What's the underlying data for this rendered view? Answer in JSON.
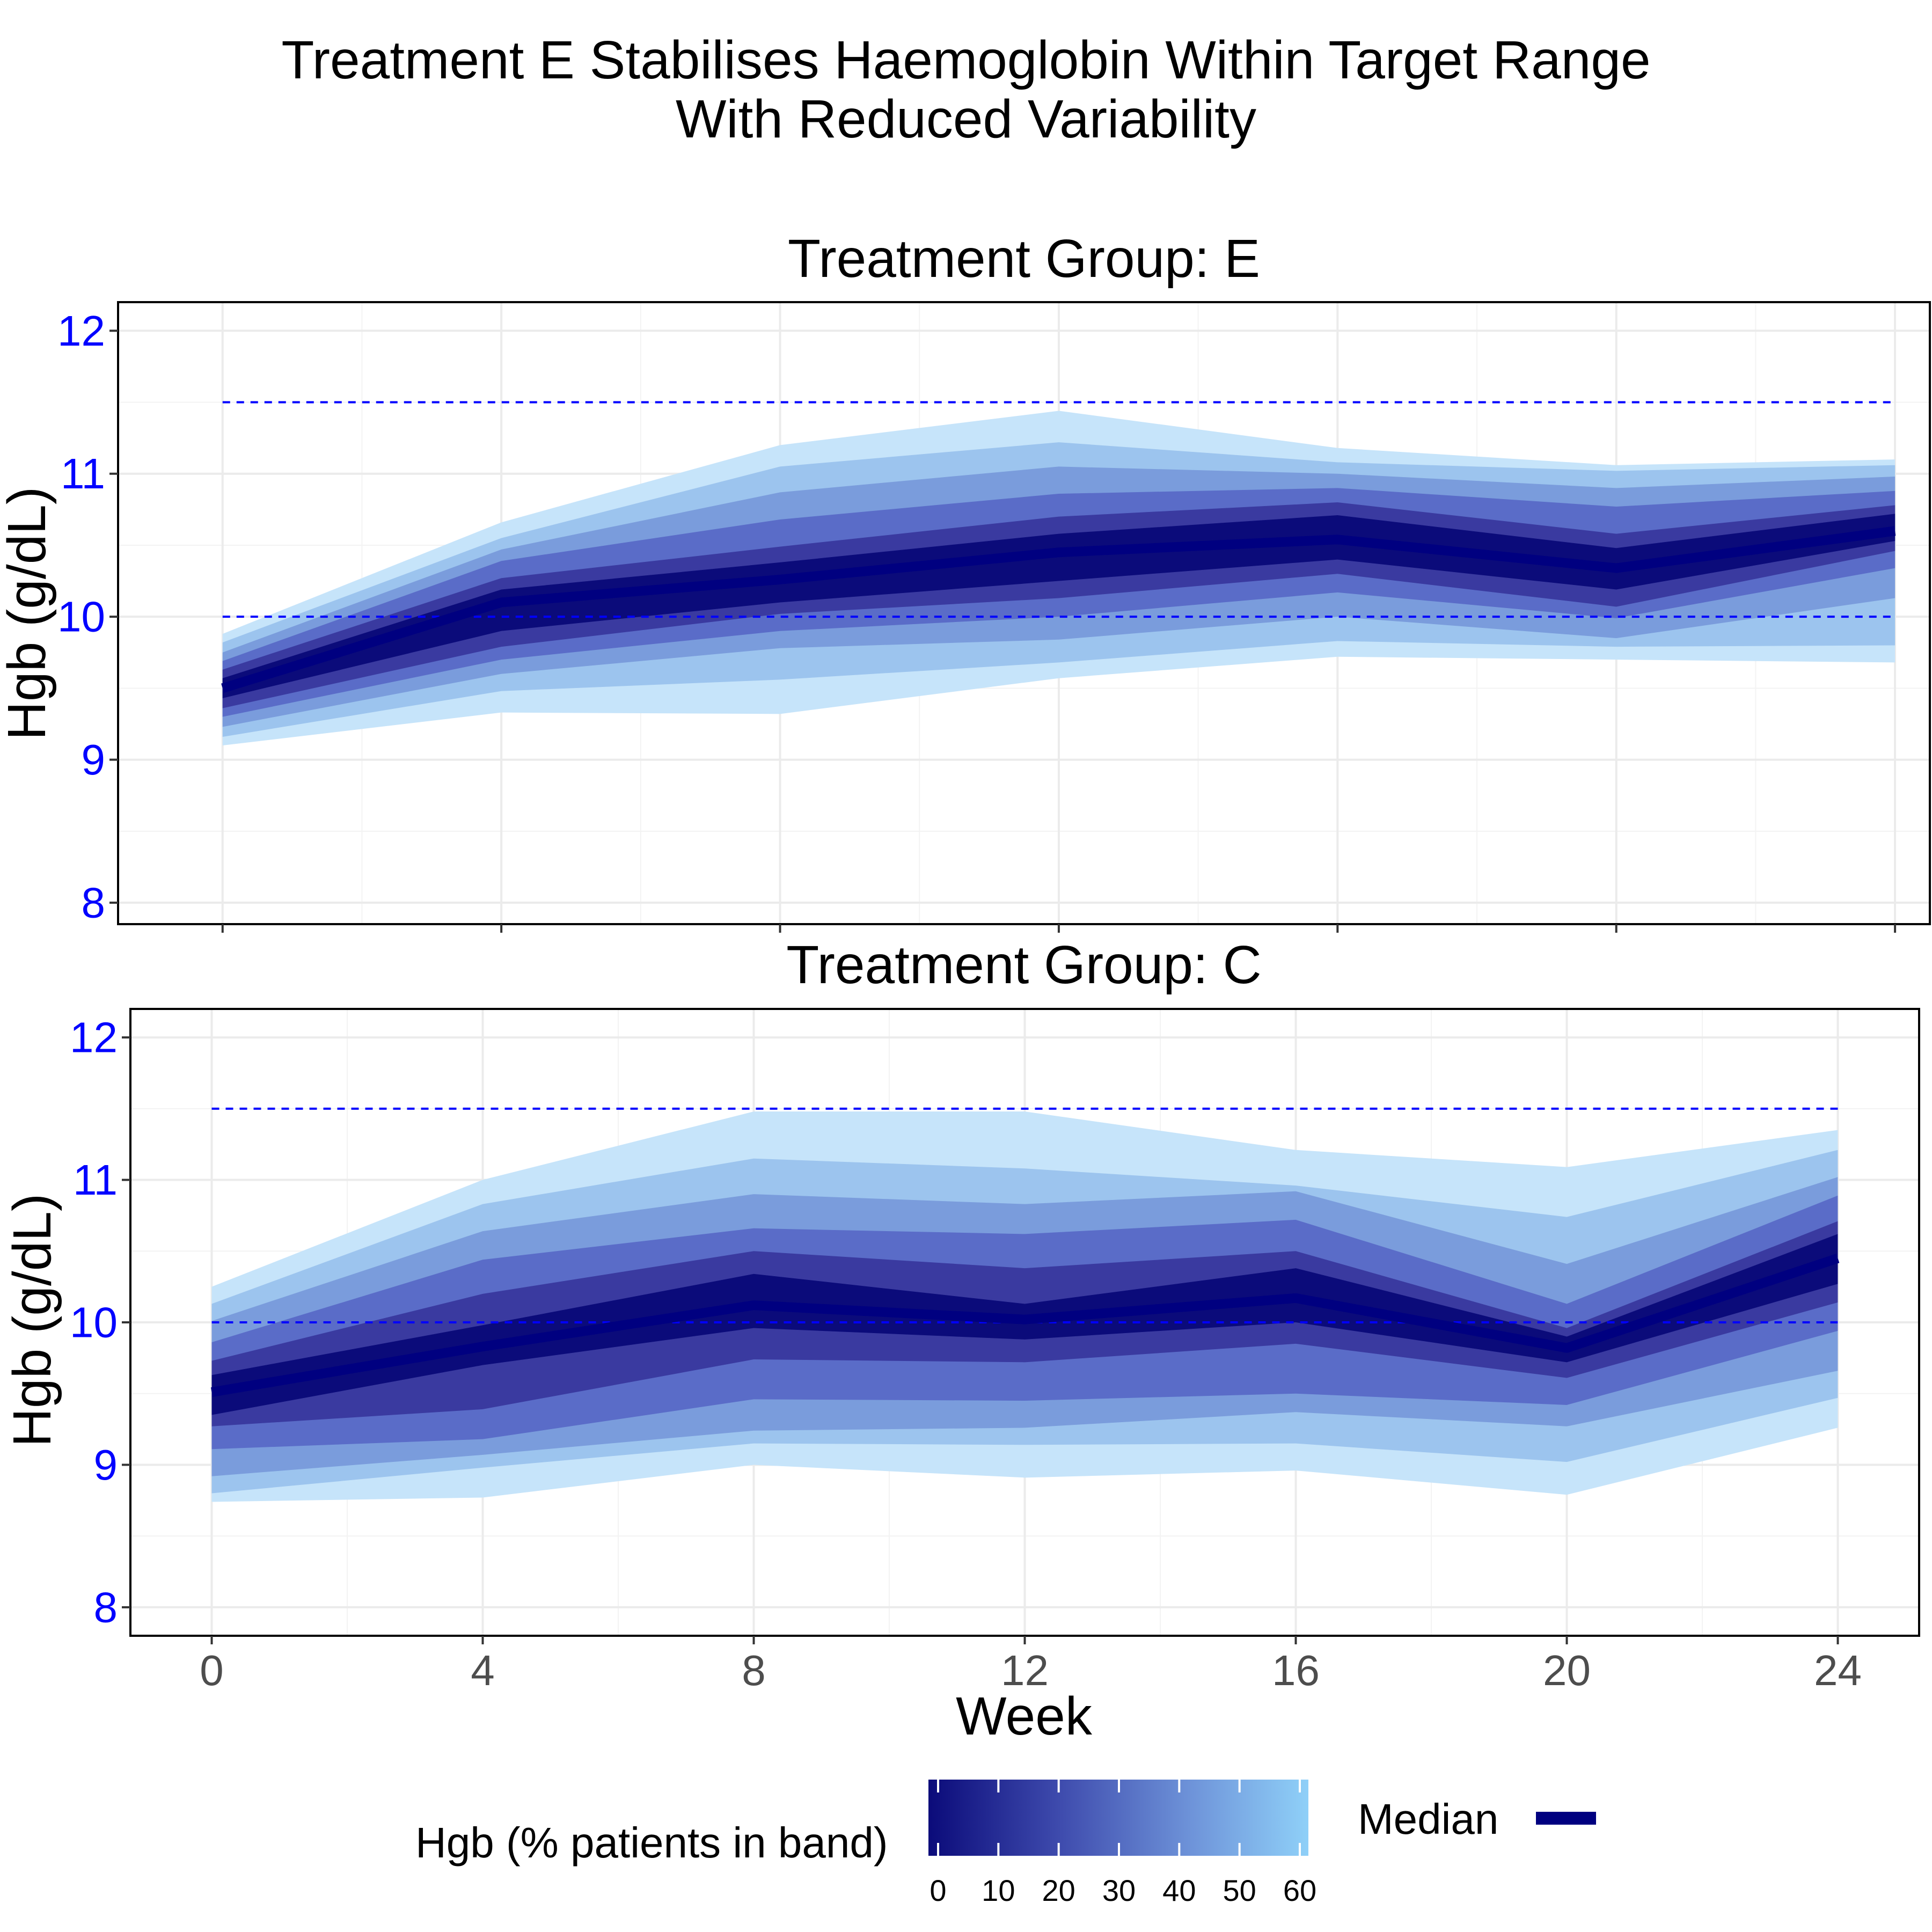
{
  "title_lines": [
    "Treatment E Stabilises Haemoglobin Within Target Range",
    "With Reduced Variability"
  ],
  "colors": {
    "median": "#000080",
    "reference_line": "#0000FF",
    "tick_label_y": "#0000FF",
    "tick_label_x": "#4D4D4D",
    "grid": "#EBEBEB",
    "band_gradient": [
      "#0B0B7A",
      "#3A3AA0",
      "#5A6CC8",
      "#7A9CDC",
      "#9CC4EE",
      "#C6E4FA"
    ]
  },
  "legend": {
    "fill_title": "Hgb (% patients in band)",
    "fill_ticks": [
      "0",
      "10",
      "20",
      "30",
      "40",
      "50",
      "60"
    ],
    "median_label": "Median"
  },
  "chart_data": [
    {
      "type": "area",
      "title": "Treatment Group: E",
      "xlabel": "",
      "ylabel": "Hgb (g/dL)",
      "xlim": [
        -1.5,
        24.5
      ],
      "ylim": [
        7.85,
        12.2
      ],
      "x_ticks": [
        0,
        4,
        8,
        12,
        16,
        20,
        24
      ],
      "y_ticks": [
        8,
        9,
        10,
        11,
        12
      ],
      "x_tick_labels_visible": false,
      "reference_lines": [
        10,
        11.5
      ],
      "grid": true,
      "x": [
        0,
        4,
        8,
        12,
        16,
        20,
        24
      ],
      "median": [
        9.5,
        10.1,
        10.26,
        10.45,
        10.54,
        10.34,
        10.6
      ],
      "bands": [
        {
          "lower": [
            9.1,
            9.33,
            9.32,
            9.57,
            9.72,
            9.7,
            9.68
          ],
          "upper": [
            9.88,
            10.66,
            11.2,
            11.44,
            11.18,
            11.06,
            11.1
          ]
        },
        {
          "lower": [
            9.16,
            9.48,
            9.56,
            9.68,
            9.83,
            9.79,
            9.8
          ],
          "upper": [
            9.82,
            10.55,
            11.05,
            11.22,
            11.08,
            11.02,
            11.06
          ]
        },
        {
          "lower": [
            9.23,
            9.6,
            9.78,
            9.84,
            10.0,
            9.85,
            10.13
          ],
          "upper": [
            9.75,
            10.47,
            10.87,
            11.05,
            11.0,
            10.9,
            10.98
          ]
        },
        {
          "lower": [
            9.3,
            9.7,
            9.9,
            10.0,
            10.17,
            9.99,
            10.34
          ],
          "upper": [
            9.69,
            10.39,
            10.68,
            10.86,
            10.9,
            10.77,
            10.88
          ]
        },
        {
          "lower": [
            9.36,
            9.79,
            10.02,
            10.13,
            10.3,
            10.07,
            10.46
          ],
          "upper": [
            9.63,
            10.27,
            10.49,
            10.7,
            10.8,
            10.58,
            10.78
          ]
        },
        {
          "lower": [
            9.43,
            9.9,
            10.1,
            10.25,
            10.4,
            10.19,
            10.53
          ],
          "upper": [
            9.57,
            10.19,
            10.38,
            10.58,
            10.71,
            10.48,
            10.72
          ]
        }
      ]
    },
    {
      "type": "area",
      "title": "Treatment Group: C",
      "xlabel": "Week",
      "ylabel": "Hgb (g/dL)",
      "xlim": [
        -1.2,
        25.2
      ],
      "ylim": [
        7.8,
        12.2
      ],
      "x_ticks": [
        0,
        4,
        8,
        12,
        16,
        20,
        24
      ],
      "y_ticks": [
        8,
        9,
        10,
        11,
        12
      ],
      "x_tick_labels_visible": true,
      "reference_lines": [
        10,
        11.5
      ],
      "grid": true,
      "x": [
        0,
        4,
        8,
        12,
        16,
        20,
        24
      ],
      "median": [
        9.51,
        9.83,
        10.12,
        10.02,
        10.17,
        9.82,
        10.45
      ],
      "bands": [
        {
          "lower": [
            8.74,
            8.77,
            9.0,
            8.91,
            8.96,
            8.79,
            9.26
          ],
          "upper": [
            10.25,
            11.0,
            11.48,
            11.48,
            11.21,
            11.09,
            11.35
          ]
        },
        {
          "lower": [
            8.8,
            8.98,
            9.15,
            9.14,
            9.15,
            9.02,
            9.47
          ],
          "upper": [
            10.13,
            10.83,
            11.15,
            11.08,
            10.96,
            10.74,
            11.21
          ]
        },
        {
          "lower": [
            8.92,
            9.07,
            9.24,
            9.26,
            9.37,
            9.27,
            9.66
          ],
          "upper": [
            10.01,
            10.64,
            10.9,
            10.83,
            10.92,
            10.41,
            11.02
          ]
        },
        {
          "lower": [
            9.11,
            9.18,
            9.46,
            9.45,
            9.5,
            9.42,
            9.94
          ],
          "upper": [
            9.86,
            10.44,
            10.66,
            10.62,
            10.72,
            10.13,
            10.89
          ]
        },
        {
          "lower": [
            9.27,
            9.39,
            9.74,
            9.72,
            9.85,
            9.61,
            10.14
          ],
          "upper": [
            9.73,
            10.2,
            10.5,
            10.38,
            10.5,
            9.96,
            10.71
          ]
        },
        {
          "lower": [
            9.35,
            9.7,
            9.96,
            9.88,
            10.0,
            9.72,
            10.27
          ],
          "upper": [
            9.63,
            9.98,
            10.34,
            10.13,
            10.38,
            9.9,
            10.62
          ]
        }
      ]
    }
  ]
}
